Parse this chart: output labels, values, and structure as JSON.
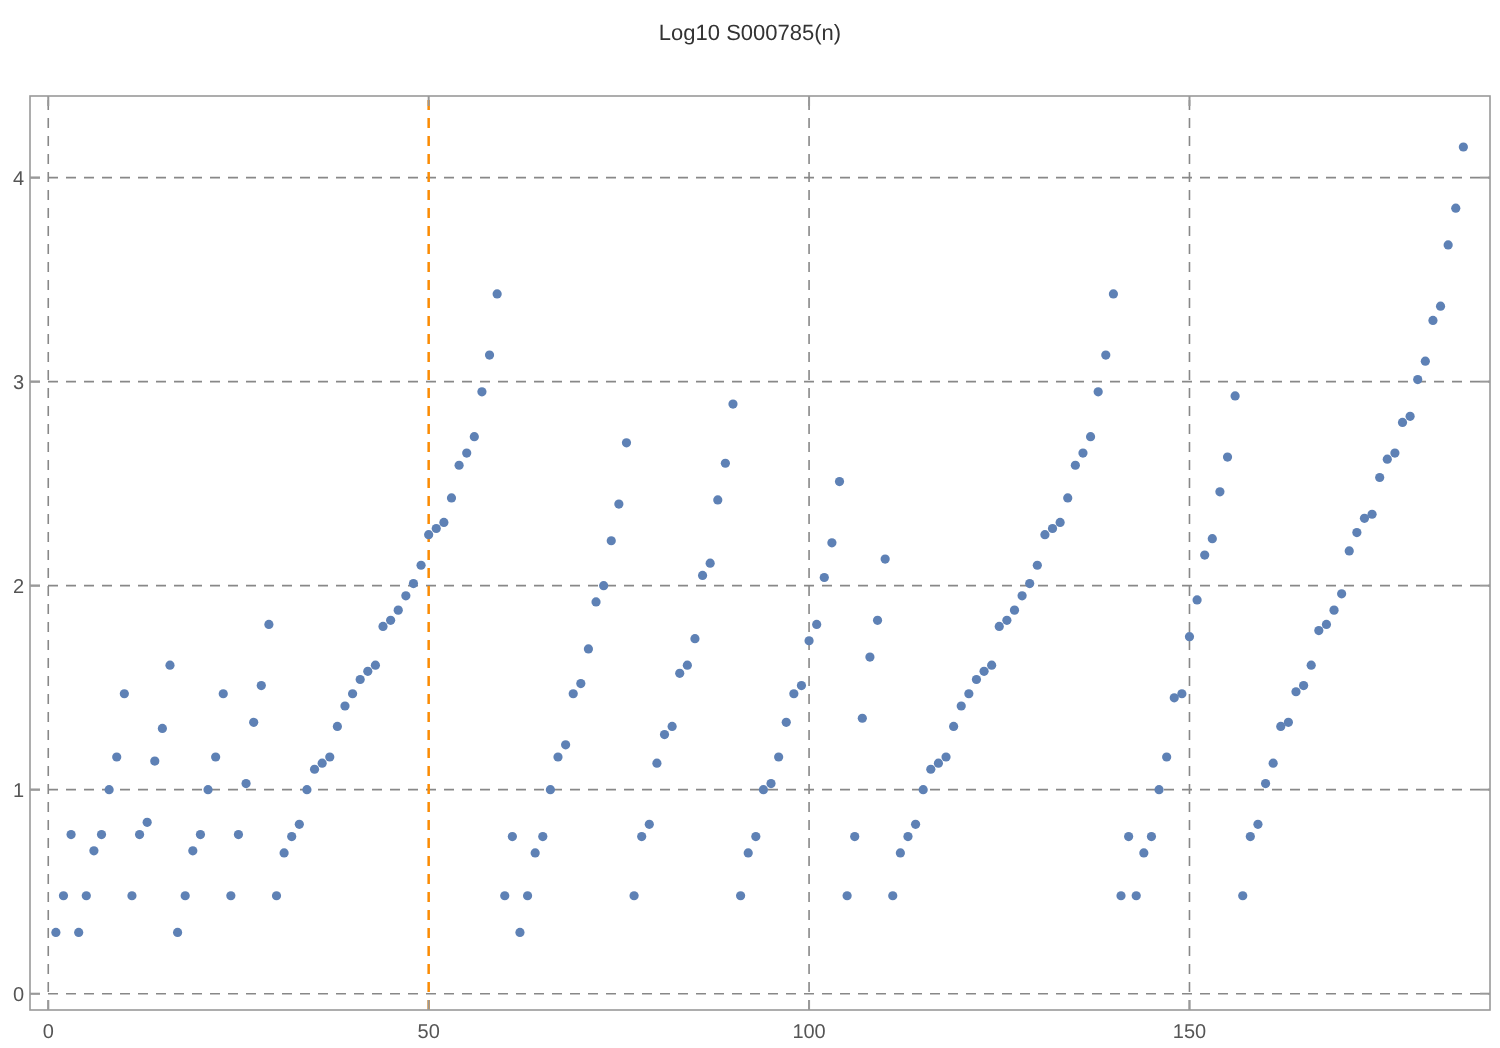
{
  "chart_data": {
    "type": "scatter",
    "title": "Log10 S000785(n)",
    "x": [
      1,
      2,
      3,
      4,
      5,
      6,
      7,
      8,
      9,
      10,
      11,
      12,
      13,
      14,
      15,
      16,
      17,
      18,
      19,
      20,
      21,
      22,
      23,
      24,
      25,
      26,
      27,
      28,
      29,
      30,
      31,
      32,
      33,
      34,
      35,
      36,
      37,
      38,
      39,
      40,
      41,
      42,
      43,
      44,
      45,
      46,
      47,
      48,
      49,
      50,
      51,
      52,
      53,
      54,
      55,
      56,
      57,
      58,
      59,
      60,
      61,
      62,
      63,
      64,
      65,
      66,
      67,
      68,
      69,
      70,
      71,
      72,
      73,
      74,
      75,
      76,
      77,
      78,
      79,
      80,
      81,
      82,
      83,
      84,
      85,
      86,
      87,
      88,
      89,
      90,
      91,
      92,
      93,
      94,
      95,
      96,
      97,
      98,
      99,
      100,
      101,
      102,
      103,
      104,
      105,
      106,
      107,
      108,
      109,
      110,
      111,
      112,
      113,
      114,
      115,
      116,
      117,
      118,
      119,
      120,
      121,
      122,
      123,
      124,
      125,
      126,
      127,
      128,
      129,
      130,
      131,
      132,
      133,
      134,
      135,
      136,
      137,
      138,
      139,
      140,
      141,
      142,
      143,
      144,
      145,
      146,
      147,
      148,
      149,
      150,
      151,
      152,
      153,
      154,
      155,
      156,
      157,
      158,
      159,
      160,
      161,
      162,
      163,
      164,
      165,
      166,
      167,
      168,
      169,
      170,
      171,
      172,
      173,
      174,
      175,
      176,
      177,
      178,
      179,
      180,
      181,
      182,
      183,
      184,
      185,
      186
    ],
    "values": [
      0.3,
      0.48,
      0.78,
      0.3,
      0.48,
      0.7,
      0.78,
      1.0,
      1.16,
      1.47,
      0.48,
      0.78,
      0.84,
      1.14,
      1.3,
      1.61,
      0.3,
      0.48,
      0.7,
      0.78,
      1.0,
      1.16,
      1.47,
      0.48,
      0.78,
      1.03,
      1.33,
      1.51,
      1.81,
      0.48,
      0.69,
      0.77,
      0.83,
      1.0,
      1.1,
      1.13,
      1.16,
      1.31,
      1.41,
      1.47,
      1.54,
      1.58,
      1.61,
      1.8,
      1.83,
      1.88,
      1.95,
      2.01,
      2.1,
      2.25,
      2.28,
      2.31,
      2.43,
      2.59,
      2.65,
      2.73,
      2.95,
      3.13,
      3.43,
      0.48,
      0.77,
      0.3,
      0.48,
      0.69,
      0.77,
      1.0,
      1.16,
      1.22,
      1.47,
      1.52,
      1.69,
      1.92,
      2.0,
      2.22,
      2.4,
      2.7,
      0.48,
      0.77,
      0.83,
      1.13,
      1.27,
      1.31,
      1.57,
      1.61,
      1.74,
      2.05,
      2.11,
      2.42,
      2.6,
      2.89,
      0.48,
      0.69,
      0.77,
      1.0,
      1.03,
      1.16,
      1.33,
      1.47,
      1.51,
      1.73,
      1.81,
      2.04,
      2.21,
      2.51,
      0.48,
      0.77,
      1.35,
      1.65,
      1.83,
      2.13,
      0.48,
      0.69,
      0.77,
      0.83,
      1.0,
      1.1,
      1.13,
      1.16,
      1.31,
      1.41,
      1.47,
      1.54,
      1.58,
      1.61,
      1.8,
      1.83,
      1.88,
      1.95,
      2.01,
      2.1,
      2.25,
      2.28,
      2.31,
      2.43,
      2.59,
      2.65,
      2.73,
      2.95,
      3.13,
      3.43,
      0.48,
      0.77,
      0.48,
      0.69,
      0.77,
      1.0,
      1.16,
      1.45,
      1.47,
      1.75,
      1.93,
      2.15,
      2.23,
      2.46,
      2.63,
      2.93,
      0.48,
      0.77,
      0.83,
      1.03,
      1.13,
      1.31,
      1.33,
      1.48,
      1.51,
      1.61,
      1.78,
      1.81,
      1.88,
      1.96,
      2.17,
      2.26,
      2.33,
      2.35,
      2.53,
      2.62,
      2.65,
      2.8,
      2.83,
      3.01,
      3.1,
      3.3,
      3.37,
      3.67,
      3.85,
      4.15
    ],
    "color": "#5e81b5",
    "marker": "circle",
    "xlim": [
      -2.4,
      189.5
    ],
    "ylim": [
      -0.08,
      4.4
    ],
    "xticks": [
      0,
      50,
      100,
      150
    ],
    "yticks": [
      0,
      1,
      2,
      3,
      4
    ],
    "grid": true,
    "ref_lines": [
      {
        "axis": "x",
        "value": 50,
        "color": "#ff8c00",
        "line_style": "dashed"
      }
    ]
  }
}
